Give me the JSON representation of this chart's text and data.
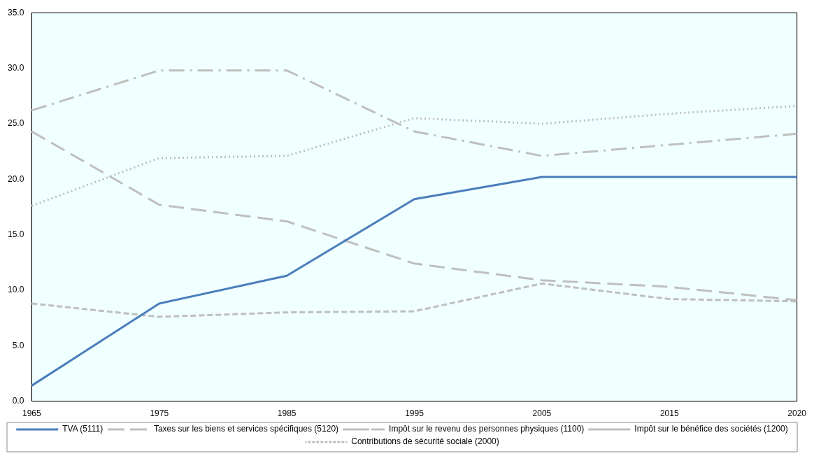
{
  "chart_data": {
    "type": "line",
    "categories": [
      "1965",
      "1975",
      "1985",
      "1995",
      "2005",
      "2015",
      "2020"
    ],
    "ylim": [
      0,
      35
    ],
    "yticks": [
      {
        "value": 0,
        "label": "0.0"
      },
      {
        "value": 5,
        "label": "5.0"
      },
      {
        "value": 10,
        "label": "10.0"
      },
      {
        "value": 15,
        "label": "15.0"
      },
      {
        "value": 20,
        "label": "20.0"
      },
      {
        "value": 25,
        "label": "25.0"
      },
      {
        "value": 30,
        "label": "30.0"
      },
      {
        "value": 35,
        "label": "35.0"
      }
    ],
    "grid": false,
    "legend": "bottom",
    "marker": "none",
    "series": [
      {
        "name": "TVA (5111)",
        "color": "#4a7ebb",
        "line_style": "solid",
        "values": [
          1.4,
          8.8,
          11.3,
          18.2,
          20.2,
          20.2,
          20.2
        ]
      },
      {
        "name": "Taxes sur les biens et services spécifiques (5120)",
        "color": "#bfbfbf",
        "line_style": "long_dash",
        "values": [
          24.3,
          17.7,
          16.2,
          12.4,
          10.9,
          10.3,
          9.1
        ]
      },
      {
        "name": "Impôt sur le revenu des personnes physiques (1100)",
        "color": "#bfbfbf",
        "line_style": "dash_dot",
        "values": [
          26.2,
          29.8,
          29.8,
          24.3,
          22.1,
          23.1,
          24.1
        ]
      },
      {
        "name": "Impôt sur le bénéfice des sociétés (1200)",
        "color": "#bfbfbf",
        "line_style": "dashed",
        "values": [
          8.8,
          7.6,
          8.0,
          8.1,
          10.6,
          9.2,
          9.0
        ]
      },
      {
        "name": "Contributions de sécurité sociale (2000)",
        "color": "#bfbfbf",
        "line_style": "dotted",
        "values": [
          17.6,
          21.9,
          22.1,
          25.5,
          25.0,
          25.9,
          26.6
        ]
      }
    ]
  }
}
